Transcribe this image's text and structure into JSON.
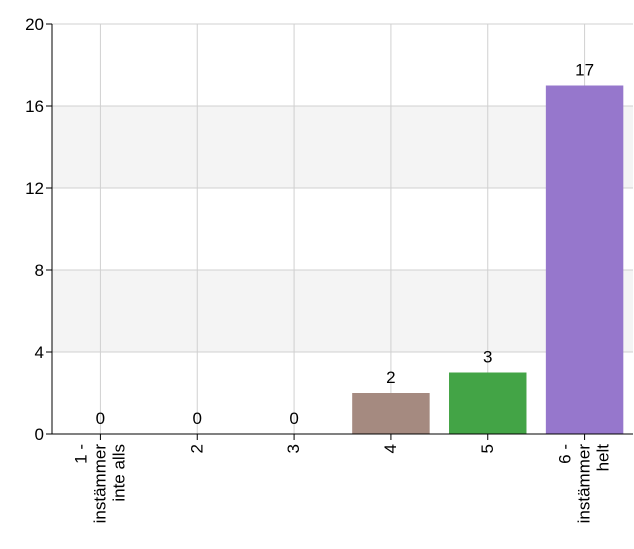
{
  "chart_data": {
    "type": "bar",
    "categories": [
      [
        "1 -",
        "instämmer",
        "inte alls"
      ],
      [
        "2"
      ],
      [
        "3"
      ],
      [
        "4"
      ],
      [
        "5"
      ],
      [
        "6 -",
        "instämmer",
        "helt"
      ]
    ],
    "values": [
      0,
      0,
      0,
      2,
      3,
      17
    ],
    "data_labels": [
      "0",
      "0",
      "0",
      "2",
      "3",
      "17"
    ],
    "bar_colors": [
      "#5b9bd5",
      "#5b9bd5",
      "#5b9bd5",
      "#a58a80",
      "#43a446",
      "#9677cc"
    ],
    "ylim": [
      0,
      20
    ],
    "yticks": [
      0,
      4,
      8,
      12,
      16,
      20
    ],
    "title": "",
    "xlabel": "",
    "ylabel": "",
    "grid": true,
    "band_color": "#f4f4f4",
    "grid_color": "#d0d0d0"
  }
}
